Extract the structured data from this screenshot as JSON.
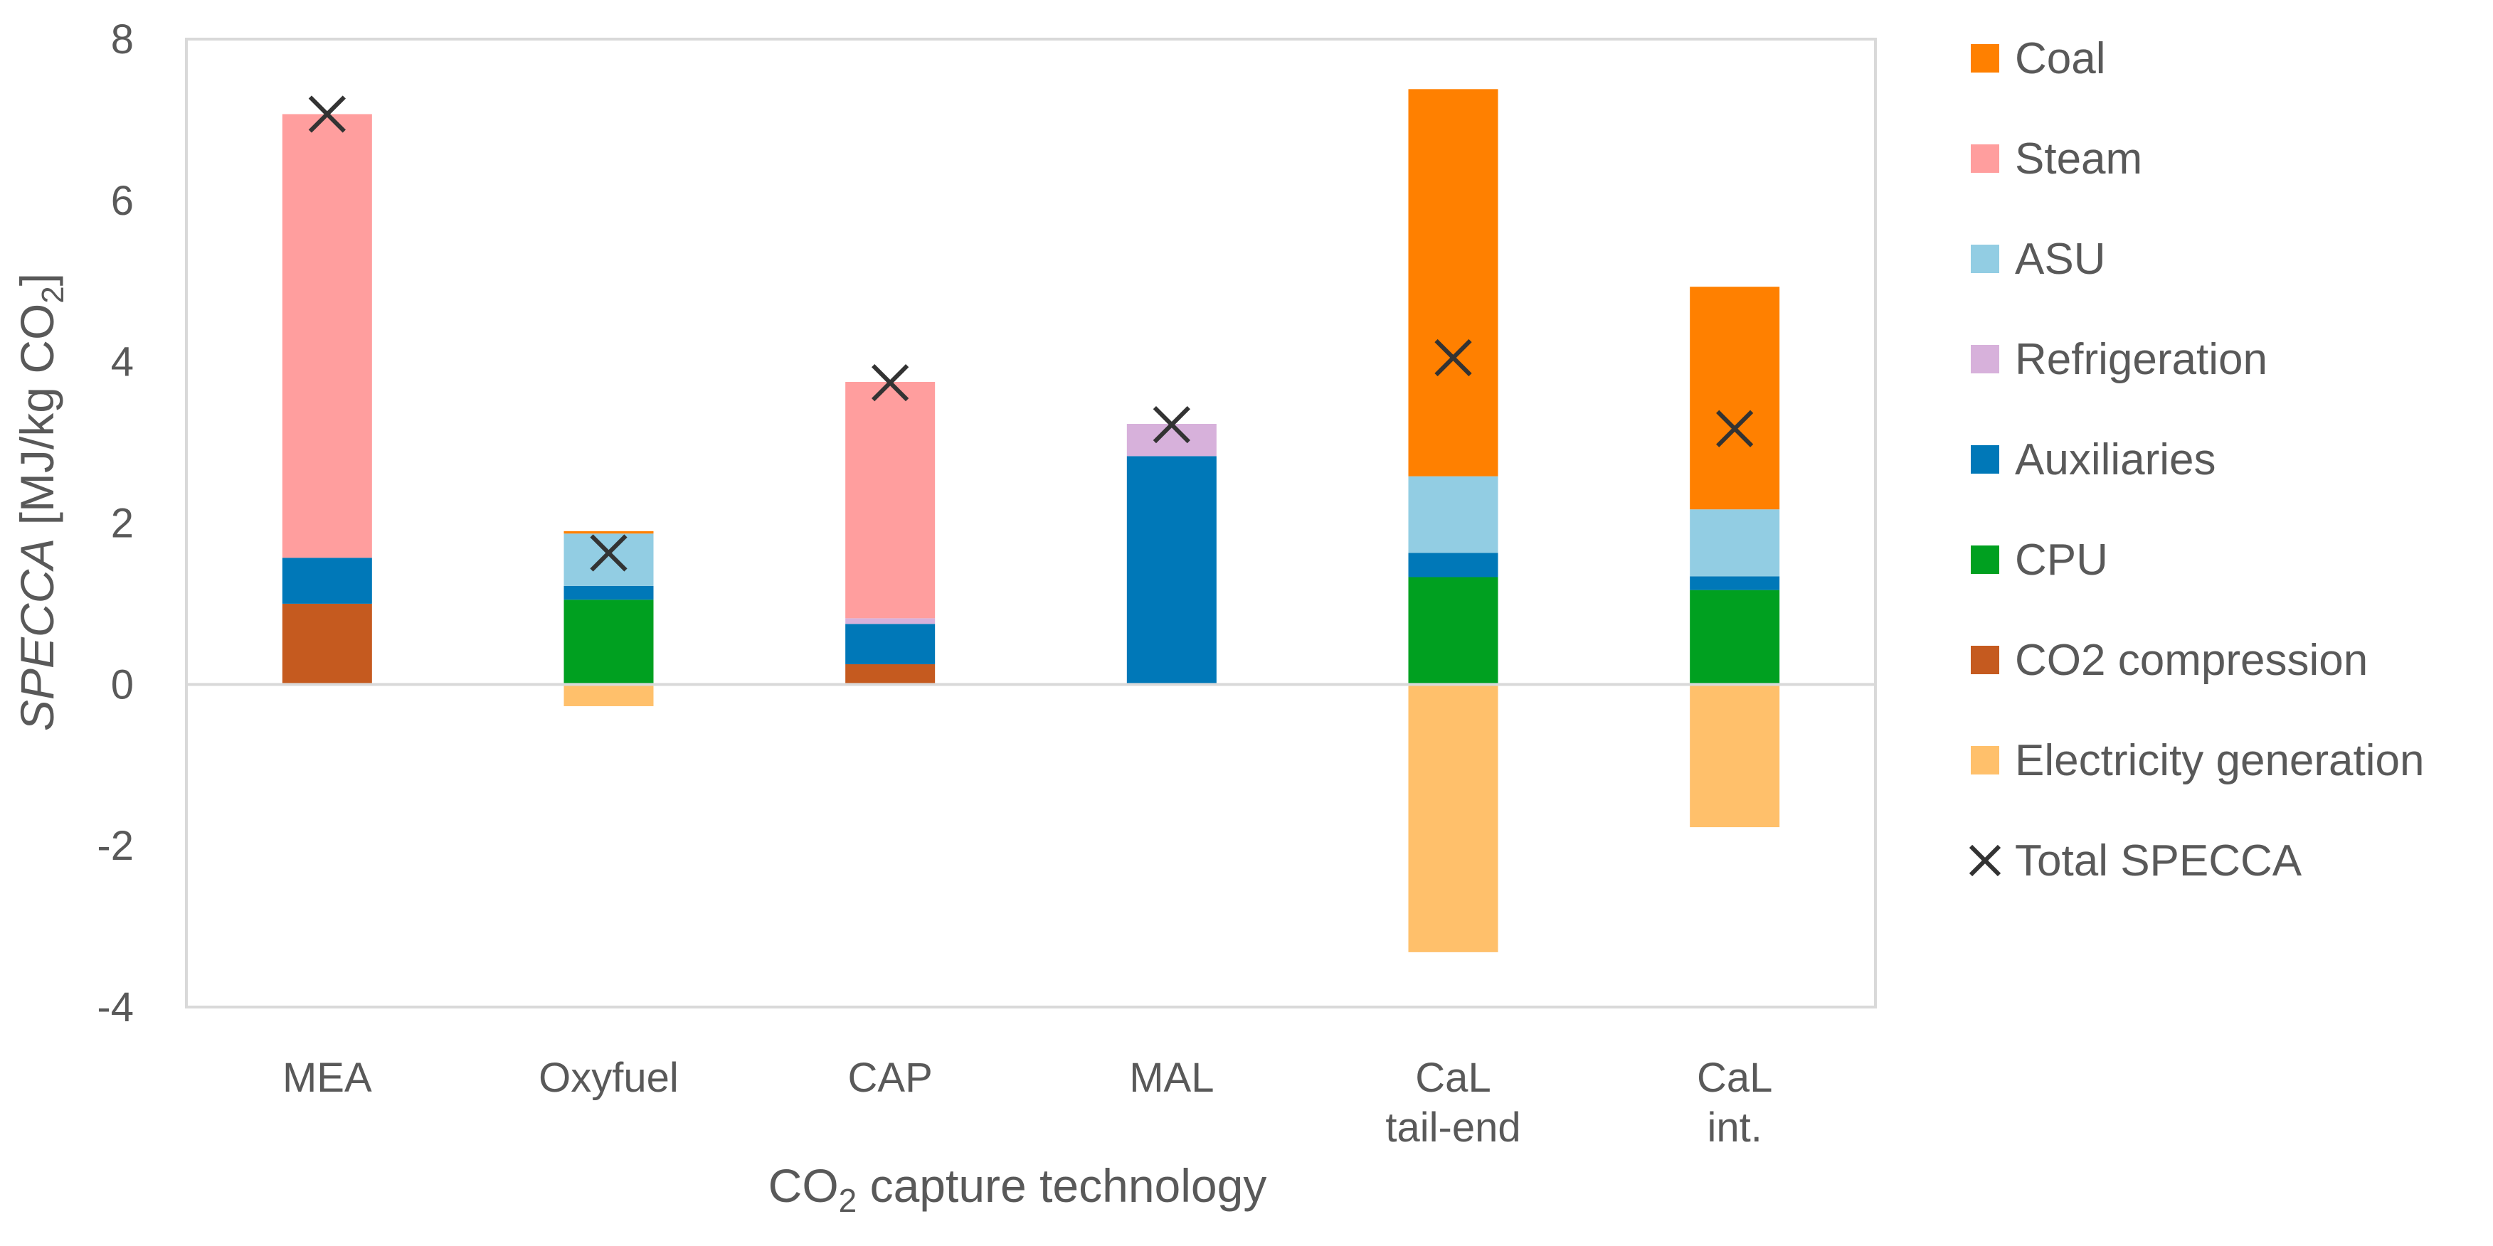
{
  "chart_data": {
    "type": "bar",
    "stacked": true,
    "title": "",
    "ylabel": {
      "italic": "SPECCA",
      "rest": " [MJ/kg CO",
      "sub": "2",
      "close": "]"
    },
    "xlabel": {
      "pre": "CO",
      "sub": "2",
      "post": " capture technology"
    },
    "ylim": [
      -4,
      8
    ],
    "yticks": [
      -4,
      -2,
      0,
      2,
      4,
      6,
      8
    ],
    "grid": false,
    "legend_position": "right",
    "categories": [
      {
        "lines": [
          "MEA"
        ]
      },
      {
        "lines": [
          "Oxyfuel"
        ]
      },
      {
        "lines": [
          "CAP"
        ]
      },
      {
        "lines": [
          "MAL"
        ]
      },
      {
        "lines": [
          "CaL",
          "tail-end"
        ]
      },
      {
        "lines": [
          "CaL",
          "int."
        ]
      }
    ],
    "series": [
      {
        "name": "CO2 compression",
        "color": "#C55A1F",
        "values": [
          1.0,
          0,
          0.25,
          0,
          0,
          0
        ]
      },
      {
        "name": "CPU",
        "color": "#00A020",
        "values": [
          0,
          1.05,
          0,
          0,
          1.33,
          1.17
        ]
      },
      {
        "name": "Auxiliaries",
        "color": "#0078B8",
        "values": [
          0.57,
          0.17,
          0.5,
          2.83,
          0.3,
          0.17
        ]
      },
      {
        "name": "Refrigeration",
        "color": "#D7B1DB",
        "values": [
          0,
          0,
          0.07,
          0.4,
          0,
          0
        ]
      },
      {
        "name": "ASU",
        "color": "#92CDE3",
        "values": [
          0,
          0.65,
          0,
          0,
          0.95,
          0.83
        ]
      },
      {
        "name": "Steam",
        "color": "#FF9E9E",
        "values": [
          5.5,
          0,
          2.93,
          0,
          0,
          0
        ]
      },
      {
        "name": "Coal",
        "color": "#FF8000",
        "values": [
          0,
          0.03,
          0,
          0,
          4.8,
          2.76
        ]
      },
      {
        "name": "Electricity generation",
        "color": "#FFC06B",
        "values": [
          0,
          -0.27,
          0,
          0,
          -3.32,
          -1.77
        ]
      }
    ],
    "total_specca": {
      "name": "Total SPECCA",
      "color": "#333333",
      "values": [
        7.07,
        1.63,
        3.74,
        3.22,
        4.05,
        3.17
      ]
    },
    "legend_order": [
      "Coal",
      "Steam",
      "ASU",
      "Refrigeration",
      "Auxiliaries",
      "CPU",
      "CO2 compression",
      "Electricity generation",
      "Total SPECCA"
    ]
  }
}
